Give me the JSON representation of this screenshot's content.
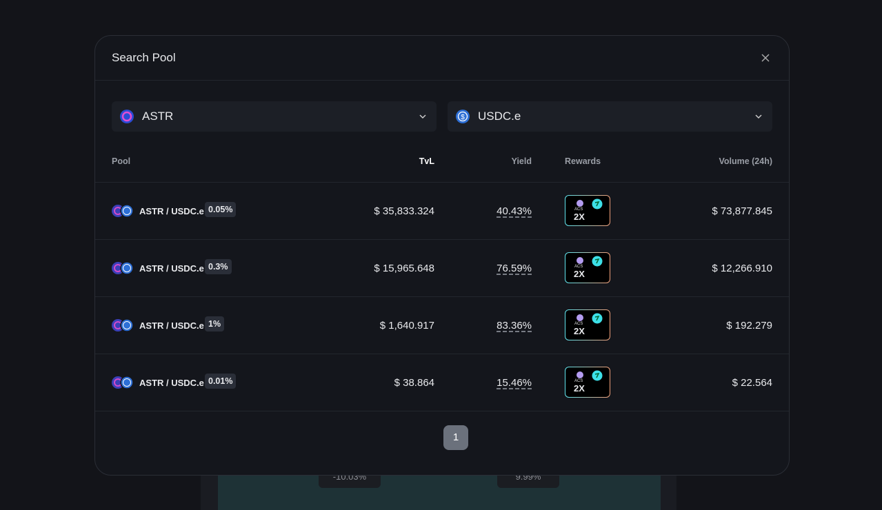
{
  "background": {
    "labels": [
      "-10.03%",
      "9.99%"
    ]
  },
  "modal": {
    "title": "Search Pool",
    "selects": [
      {
        "label": "ASTR"
      },
      {
        "label": "USDC.e"
      }
    ],
    "table": {
      "headers": [
        "Pool",
        "TvL",
        "Yield",
        "Rewards",
        "Volume (24h)"
      ],
      "rows": [
        {
          "pair": "ASTR / USDC.e",
          "fee": "0.05%",
          "tvl": "$ 35,833.324",
          "yield": "40.43%",
          "reward_token": "ACS",
          "multiplier": "2X",
          "volume": "$ 73,877.845"
        },
        {
          "pair": "ASTR / USDC.e",
          "fee": "0.3%",
          "tvl": "$ 15,965.648",
          "yield": "76.59%",
          "reward_token": "ACS",
          "multiplier": "2X",
          "volume": "$ 12,266.910"
        },
        {
          "pair": "ASTR / USDC.e",
          "fee": "1%",
          "tvl": "$ 1,640.917",
          "yield": "83.36%",
          "reward_token": "ACS",
          "multiplier": "2X",
          "volume": "$ 192.279"
        },
        {
          "pair": "ASTR / USDC.e",
          "fee": "0.01%",
          "tvl": "$ 38.864",
          "yield": "15.46%",
          "reward_token": "ACS",
          "multiplier": "2X",
          "volume": "$ 22.564"
        }
      ]
    },
    "pagination": {
      "pages": [
        "1"
      ]
    }
  }
}
